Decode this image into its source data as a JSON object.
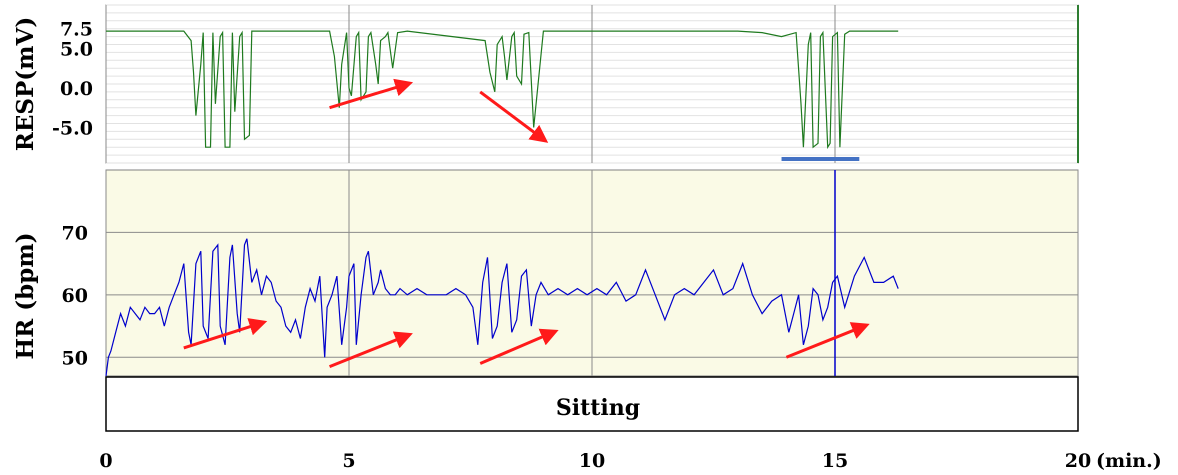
{
  "chart_data": [
    {
      "type": "line",
      "ylabel": "RESP(mV)",
      "yticks": [
        "7.5",
        "5.0",
        "0.0",
        "-5.0"
      ],
      "ytick_values": [
        7.5,
        5.0,
        0.0,
        -5.0
      ],
      "ylim": [
        -9.5,
        10.5
      ],
      "xlim": [
        0,
        20
      ],
      "grid": true,
      "series_color": "#1f7a1f",
      "baseline_mV": 7.2,
      "series": [
        {
          "x": [
            0.0,
            1.6,
            1.75,
            1.8,
            1.85,
            1.95,
            2.0,
            2.05,
            2.15,
            2.2,
            2.25,
            2.35,
            2.4,
            2.45,
            2.55,
            2.6,
            2.65,
            2.75,
            2.8,
            2.85,
            2.95,
            3.0,
            3.1,
            4.6,
            4.7,
            4.8,
            4.85,
            4.95,
            5.0,
            5.05,
            5.15,
            5.2,
            5.25,
            5.35,
            5.4,
            5.45,
            5.55,
            5.6,
            5.65,
            5.75,
            5.8,
            5.9,
            6.0,
            6.2,
            7.8,
            7.9,
            8.0,
            8.05,
            8.15,
            8.2,
            8.25,
            8.35,
            8.4,
            8.45,
            8.55,
            8.6,
            8.7,
            8.8,
            9.0,
            10.0,
            11.0,
            12.0,
            13.0,
            13.5,
            13.9,
            14.2,
            14.3,
            14.35,
            14.45,
            14.5,
            14.55,
            14.65,
            14.7,
            14.75,
            14.85,
            14.9,
            14.95,
            15.05,
            15.1,
            15.2,
            15.3,
            16.0,
            16.3
          ],
          "values": [
            7.2,
            7.2,
            6.0,
            2.0,
            -3.5,
            3.0,
            7.0,
            -7.5,
            -7.5,
            7.0,
            -2.0,
            6.5,
            7.0,
            -7.5,
            -7.5,
            7.0,
            -3.0,
            6.5,
            7.0,
            -6.5,
            -6.0,
            7.2,
            7.2,
            7.2,
            4.0,
            -2.5,
            3.0,
            7.0,
            0.0,
            -1.0,
            6.5,
            7.0,
            -1.5,
            -0.5,
            6.5,
            7.0,
            3.0,
            0.5,
            6.0,
            6.5,
            7.0,
            2.5,
            7.0,
            7.2,
            6.0,
            2.0,
            -0.5,
            5.5,
            6.5,
            4.0,
            1.0,
            6.5,
            7.0,
            1.5,
            0.5,
            6.8,
            7.0,
            -5.0,
            7.2,
            7.2,
            7.2,
            7.2,
            7.2,
            7.0,
            6.5,
            7.0,
            -2.0,
            -7.5,
            5.5,
            7.0,
            -7.5,
            -7.0,
            6.5,
            7.0,
            -7.5,
            -7.0,
            6.5,
            7.0,
            -7.5,
            6.8,
            7.2,
            7.2,
            7.2
          ]
        }
      ]
    },
    {
      "type": "line",
      "ylabel": "HR (bpm)",
      "yticks": [
        "70",
        "60",
        "50"
      ],
      "ytick_values": [
        70,
        60,
        50
      ],
      "ylim": [
        47,
        80
      ],
      "xlim": [
        0,
        20
      ],
      "grid": true,
      "background": "#fafae6",
      "series_color": "#0000cc",
      "series": [
        {
          "x": [
            0.0,
            0.05,
            0.1,
            0.2,
            0.3,
            0.4,
            0.5,
            0.6,
            0.7,
            0.8,
            0.9,
            1.0,
            1.1,
            1.2,
            1.3,
            1.4,
            1.5,
            1.6,
            1.7,
            1.75,
            1.85,
            1.95,
            2.0,
            2.1,
            2.2,
            2.3,
            2.35,
            2.45,
            2.55,
            2.6,
            2.7,
            2.75,
            2.85,
            2.9,
            3.0,
            3.1,
            3.2,
            3.3,
            3.4,
            3.5,
            3.6,
            3.7,
            3.8,
            3.9,
            4.0,
            4.1,
            4.2,
            4.3,
            4.4,
            4.5,
            4.55,
            4.65,
            4.75,
            4.85,
            4.95,
            5.0,
            5.1,
            5.15,
            5.25,
            5.35,
            5.4,
            5.5,
            5.6,
            5.65,
            5.75,
            5.85,
            5.95,
            6.05,
            6.2,
            6.4,
            6.6,
            6.8,
            7.0,
            7.2,
            7.4,
            7.55,
            7.65,
            7.75,
            7.85,
            7.95,
            8.05,
            8.15,
            8.25,
            8.35,
            8.45,
            8.55,
            8.65,
            8.75,
            8.85,
            8.95,
            9.1,
            9.3,
            9.5,
            9.7,
            9.9,
            10.1,
            10.3,
            10.5,
            10.7,
            10.9,
            11.1,
            11.3,
            11.5,
            11.7,
            11.9,
            12.1,
            12.3,
            12.5,
            12.7,
            12.9,
            13.1,
            13.3,
            13.5,
            13.7,
            13.9,
            14.05,
            14.15,
            14.25,
            14.35,
            14.45,
            14.55,
            14.65,
            14.75,
            14.85,
            14.95,
            15.05,
            15.2,
            15.4,
            15.6,
            15.8,
            16.0,
            16.2,
            16.3
          ],
          "values": [
            47,
            50,
            51,
            54,
            57,
            55,
            58,
            57,
            56,
            58,
            57,
            57,
            58,
            55,
            58,
            60,
            62,
            65,
            54,
            52,
            65,
            67,
            55,
            53,
            67,
            68,
            55,
            52,
            66,
            68,
            57,
            54,
            68,
            69,
            62,
            64,
            60,
            63,
            62,
            59,
            58,
            55,
            54,
            56,
            53,
            58,
            61,
            59,
            63,
            50,
            58,
            60,
            63,
            52,
            58,
            63,
            65,
            52,
            60,
            66,
            67,
            60,
            62,
            64,
            61,
            60,
            60,
            61,
            60,
            61,
            60,
            60,
            60,
            61,
            60,
            58,
            52,
            62,
            66,
            53,
            55,
            62,
            65,
            54,
            56,
            63,
            64,
            55,
            60,
            62,
            60,
            61,
            60,
            61,
            60,
            61,
            60,
            62,
            59,
            60,
            64,
            60,
            56,
            60,
            61,
            60,
            62,
            64,
            60,
            61,
            65,
            60,
            57,
            59,
            60,
            54,
            57,
            60,
            52,
            55,
            61,
            60,
            56,
            58,
            62,
            63,
            58,
            63,
            66,
            62,
            62,
            63,
            61
          ]
        }
      ],
      "spike": {
        "x": 15.0,
        "value": 80
      }
    }
  ],
  "x_axis": {
    "ticks": [
      "0",
      "5",
      "10",
      "15",
      "20"
    ],
    "tick_values": [
      0,
      5,
      10,
      15,
      20
    ],
    "unit": "(min.)"
  },
  "phase": {
    "label": "Sitting",
    "start": 0,
    "end": 20
  },
  "annotations": {
    "arrow_color": "#ff1a1a",
    "span_color": "#4472c4",
    "span_start": 13.9,
    "span_end": 15.5,
    "resp_arrows": [
      {
        "x0": 4.6,
        "y0": -2.5,
        "x1": 6.2,
        "y1": 0.5
      },
      {
        "x0": 7.7,
        "y0": -0.5,
        "x1": 9.0,
        "y1": -6.5
      }
    ],
    "hr_arrows": [
      {
        "x0": 1.6,
        "y0": 51.5,
        "x1": 3.2,
        "y1": 55.5
      },
      {
        "x0": 4.6,
        "y0": 48.5,
        "x1": 6.2,
        "y1": 53.5
      },
      {
        "x0": 7.7,
        "y0": 49.0,
        "x1": 9.2,
        "y1": 54.0
      },
      {
        "x0": 14.0,
        "y0": 50.0,
        "x1": 15.6,
        "y1": 55.0
      }
    ]
  }
}
